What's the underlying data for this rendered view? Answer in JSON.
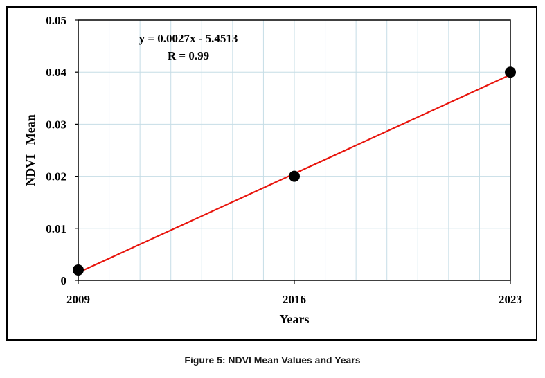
{
  "caption": "Figure 5: NDVI Mean Values and Years",
  "chart_data": {
    "type": "scatter",
    "title": "",
    "xlabel": "Years",
    "ylabel": "NDVI   Mean",
    "x": [
      2009,
      2016,
      2023
    ],
    "y": [
      0.002,
      0.02,
      0.04
    ],
    "xlim": [
      2009,
      2023
    ],
    "ylim": [
      0,
      0.05
    ],
    "xticks": [
      "2009",
      "2016",
      "2023"
    ],
    "yticks": [
      "0",
      "0.01",
      "0.02",
      "0.03",
      "0.04",
      "0.05"
    ],
    "trendline": {
      "type": "linear",
      "equation": "y = 0.0027x - 5.4513",
      "r_label": "R = 0.99",
      "from": [
        2009,
        0.0015
      ],
      "to": [
        2023,
        0.0395
      ],
      "color": "#e8140c"
    },
    "marker_color": "#000000",
    "grid": true,
    "grid_color": "#c6dde6"
  }
}
